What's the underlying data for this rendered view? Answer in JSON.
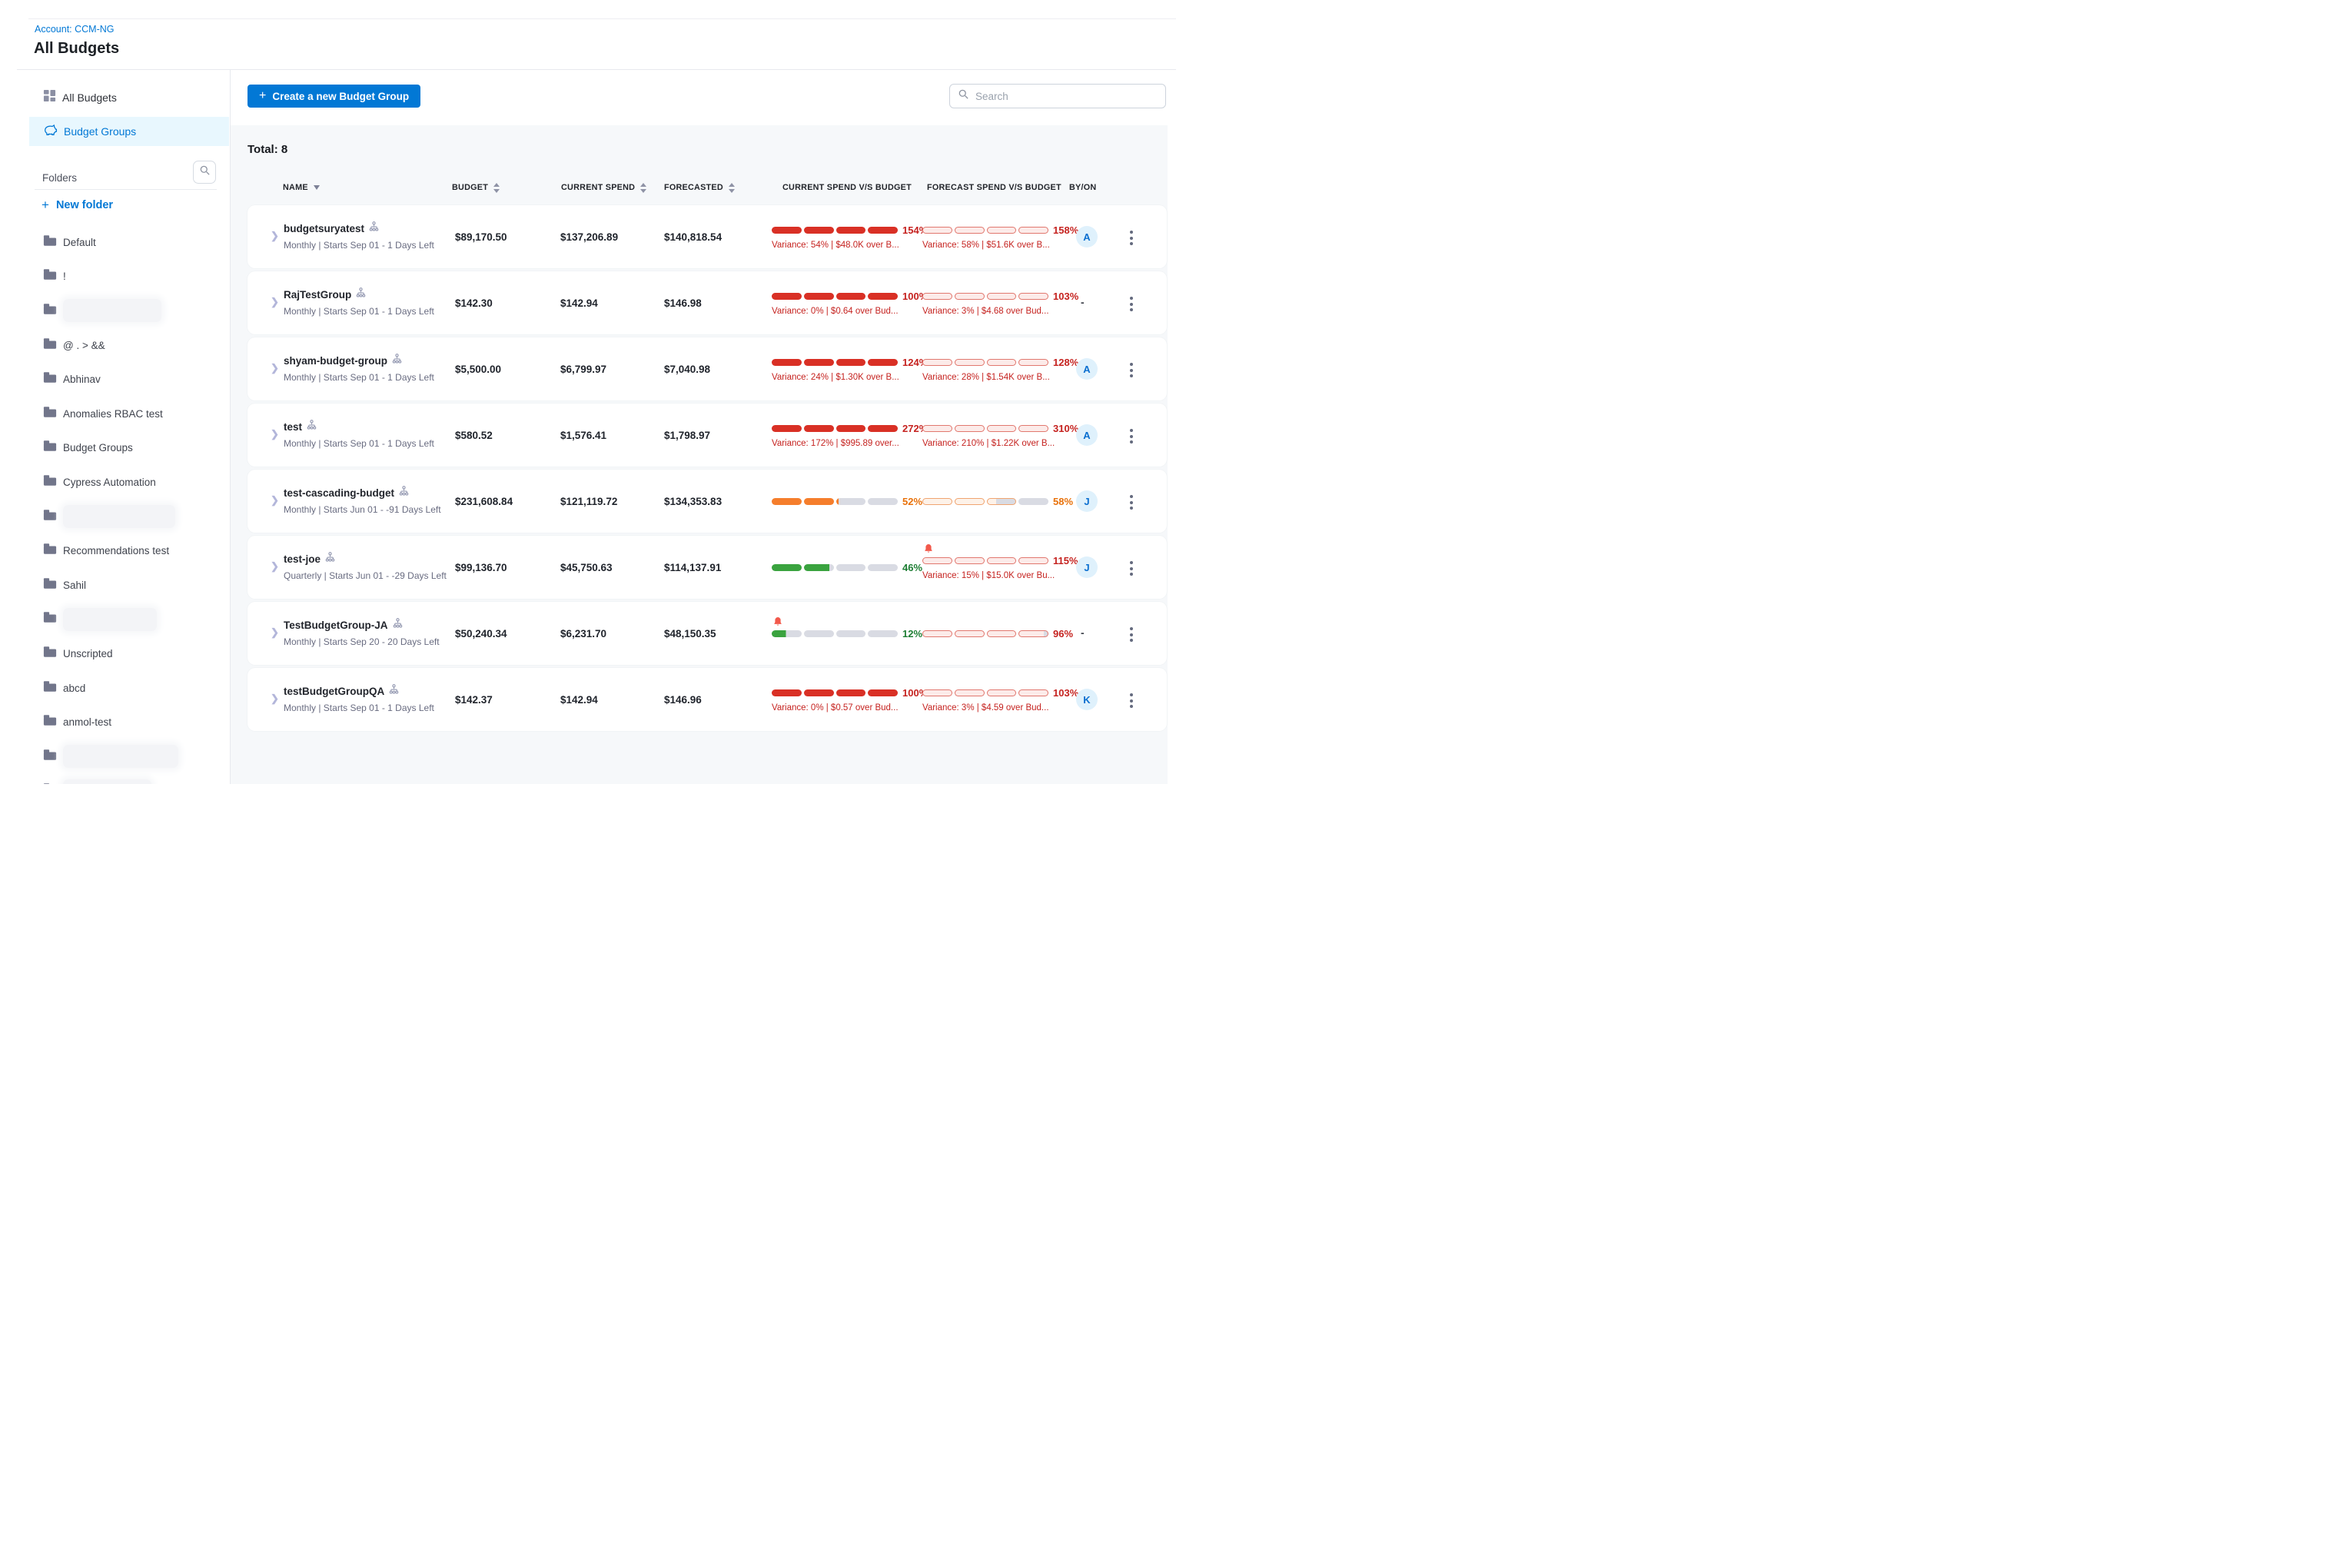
{
  "header": {
    "account_label": "Account: CCM-NG",
    "page_title": "All Budgets"
  },
  "sidebar": {
    "nav": [
      {
        "label": "All Budgets",
        "icon": "grid-icon",
        "selected": false
      },
      {
        "label": "Budget Groups",
        "icon": "piggy-bank-icon",
        "selected": true
      }
    ],
    "folders_label": "Folders",
    "new_folder_label": "New folder",
    "folders": [
      {
        "label": "Default",
        "redacted": false
      },
      {
        "label": "!",
        "redacted": false
      },
      {
        "label": "",
        "redacted": true,
        "blur_width": 128
      },
      {
        "label": "@ . > &&",
        "redacted": false
      },
      {
        "label": "Abhinav",
        "redacted": false
      },
      {
        "label": "Anomalies RBAC test",
        "redacted": false
      },
      {
        "label": "Budget Groups",
        "redacted": false
      },
      {
        "label": "Cypress Automation",
        "redacted": false
      },
      {
        "label": "",
        "redacted": true,
        "blur_width": 146
      },
      {
        "label": "Recommendations test",
        "redacted": false
      },
      {
        "label": "Sahil",
        "redacted": false
      },
      {
        "label": "",
        "redacted": true,
        "blur_width": 122
      },
      {
        "label": "Unscripted",
        "redacted": false
      },
      {
        "label": "abcd",
        "redacted": false
      },
      {
        "label": "anmol-test",
        "redacted": false
      },
      {
        "label": "",
        "redacted": true,
        "blur_width": 150
      },
      {
        "label": "",
        "redacted": true,
        "blur_width": 115
      }
    ]
  },
  "toolbar": {
    "create_button_label": "Create a new Budget Group",
    "search_placeholder": "Search"
  },
  "table": {
    "total_label": "Total: 8",
    "columns": [
      {
        "label": "NAME",
        "sort": "desc"
      },
      {
        "label": "BUDGET",
        "sort": "both"
      },
      {
        "label": "CURRENT SPEND",
        "sort": "both"
      },
      {
        "label": "FORECASTED",
        "sort": "both"
      },
      {
        "label": "CURRENT SPEND V/S BUDGET",
        "sort": "none"
      },
      {
        "label": "FORECAST SPEND V/S BUDGET",
        "sort": "none"
      },
      {
        "label": "BY/ON",
        "sort": "none"
      }
    ],
    "rows": [
      {
        "name": "budgetsuryatest",
        "details": "Monthly | Starts Sep 01 - 1 Days Left",
        "budget": "$89,170.50",
        "current_spend": "$137,206.89",
        "forecasted": "$140,818.54",
        "current_bar": {
          "style": "solid",
          "color": "red",
          "fill": 100,
          "pct": "154%",
          "variance": "Variance: 54% | $48.0K over B...",
          "bell": false
        },
        "forecast_bar": {
          "style": "outline",
          "color": "red",
          "fill": 100,
          "pct": "158%",
          "variance": "Variance: 58% | $51.6K over B...",
          "bell": false
        },
        "by_on": "A"
      },
      {
        "name": "RajTestGroup",
        "details": "Monthly | Starts Sep 01 - 1 Days Left",
        "budget": "$142.30",
        "current_spend": "$142.94",
        "forecasted": "$146.98",
        "current_bar": {
          "style": "solid",
          "color": "red",
          "fill": 100,
          "pct": "100%",
          "variance": "Variance: 0% | $0.64 over Bud...",
          "bell": false
        },
        "forecast_bar": {
          "style": "outline",
          "color": "red",
          "fill": 100,
          "pct": "103%",
          "variance": "Variance: 3% | $4.68 over Bud...",
          "bell": false
        },
        "by_on": "-"
      },
      {
        "name": "shyam-budget-group",
        "details": "Monthly | Starts Sep 01 - 1 Days Left",
        "budget": "$5,500.00",
        "current_spend": "$6,799.97",
        "forecasted": "$7,040.98",
        "current_bar": {
          "style": "solid",
          "color": "red",
          "fill": 100,
          "pct": "124%",
          "variance": "Variance: 24% | $1.30K over B...",
          "bell": false
        },
        "forecast_bar": {
          "style": "outline",
          "color": "red",
          "fill": 100,
          "pct": "128%",
          "variance": "Variance: 28% | $1.54K over B...",
          "bell": false
        },
        "by_on": "A"
      },
      {
        "name": "test",
        "details": "Monthly | Starts Sep 01 - 1 Days Left",
        "budget": "$580.52",
        "current_spend": "$1,576.41",
        "forecasted": "$1,798.97",
        "current_bar": {
          "style": "solid",
          "color": "red",
          "fill": 100,
          "pct": "272%",
          "variance": "Variance: 172% | $995.89 over...",
          "bell": false
        },
        "forecast_bar": {
          "style": "outline",
          "color": "red",
          "fill": 100,
          "pct": "310%",
          "variance": "Variance: 210% | $1.22K over B...",
          "bell": false
        },
        "by_on": "A"
      },
      {
        "name": "test-cascading-budget",
        "details": "Monthly | Starts Jun 01 - -91 Days Left",
        "budget": "$231,608.84",
        "current_spend": "$121,119.72",
        "forecasted": "$134,353.83",
        "current_bar": {
          "style": "solid",
          "color": "orange",
          "fill": 52,
          "pct": "52%",
          "variance": null,
          "bell": false
        },
        "forecast_bar": {
          "style": "outline",
          "color": "orange",
          "fill": 58,
          "pct": "58%",
          "variance": null,
          "bell": false
        },
        "by_on": "J"
      },
      {
        "name": "test-joe",
        "details": "Quarterly | Starts Jun 01 - -29 Days Left",
        "budget": "$99,136.70",
        "current_spend": "$45,750.63",
        "forecasted": "$114,137.91",
        "current_bar": {
          "style": "solid",
          "color": "green",
          "fill": 46,
          "pct": "46%",
          "variance": null,
          "bell": false
        },
        "forecast_bar": {
          "style": "outline",
          "color": "red",
          "fill": 100,
          "pct": "115%",
          "variance": "Variance: 15% | $15.0K over Bu...",
          "bell": true
        },
        "by_on": "J"
      },
      {
        "name": "TestBudgetGroup-JA",
        "details": "Monthly | Starts Sep 20 - 20 Days Left",
        "budget": "$50,240.34",
        "current_spend": "$6,231.70",
        "forecasted": "$48,150.35",
        "current_bar": {
          "style": "solid",
          "color": "green",
          "fill": 12,
          "pct": "12%",
          "variance": null,
          "bell": true
        },
        "forecast_bar": {
          "style": "outline",
          "color": "red",
          "fill": 96,
          "pct": "96%",
          "variance": null,
          "bell": false
        },
        "by_on": "-"
      },
      {
        "name": "testBudgetGroupQA",
        "details": "Monthly | Starts Sep 01 - 1 Days Left",
        "budget": "$142.37",
        "current_spend": "$142.94",
        "forecasted": "$146.96",
        "current_bar": {
          "style": "solid",
          "color": "red",
          "fill": 100,
          "pct": "100%",
          "variance": "Variance: 0% | $0.57 over Bud...",
          "bell": false
        },
        "forecast_bar": {
          "style": "outline",
          "color": "red",
          "fill": 100,
          "pct": "103%",
          "variance": "Variance: 3% | $4.59 over Bud...",
          "bell": false
        },
        "by_on": "K"
      }
    ]
  },
  "icons": {
    "all_budgets": "grid-icon",
    "budget_groups": "piggy-bank-icon",
    "folders_search": "magnifier-icon",
    "new_folder": "plus-icon",
    "folder": "folder-icon",
    "create_button": "plus-icon",
    "search": "magnifier-icon",
    "row_expand": "chevron-right-icon",
    "name_suffix": "org-tree-icon",
    "alert": "bell-icon",
    "row_menu": "kebab-vertical-icon",
    "sort_name": "triangle-down-icon",
    "sort_columns": "triangles-up-down-icon"
  },
  "colors": {
    "accent": "#0278d5",
    "red": "#d93025",
    "red_text": "#c5221f",
    "red_light": "#fcebe9",
    "red_ring": "#e1786f",
    "orange": "#f57e2c",
    "orange_text": "#e8710a",
    "orange_light": "#fdf2e9",
    "orange_ring": "#f0a470",
    "green": "#3aa33f",
    "green_text": "#1e7e34",
    "segment_gray": "#d9dbe3",
    "avatar_bg": "#dff1fc",
    "avatar_text": "#0b6fd0",
    "bell": "#f2594b",
    "panel_bg": "#f6f8fa",
    "selected_bg": "#e8f7fe"
  }
}
